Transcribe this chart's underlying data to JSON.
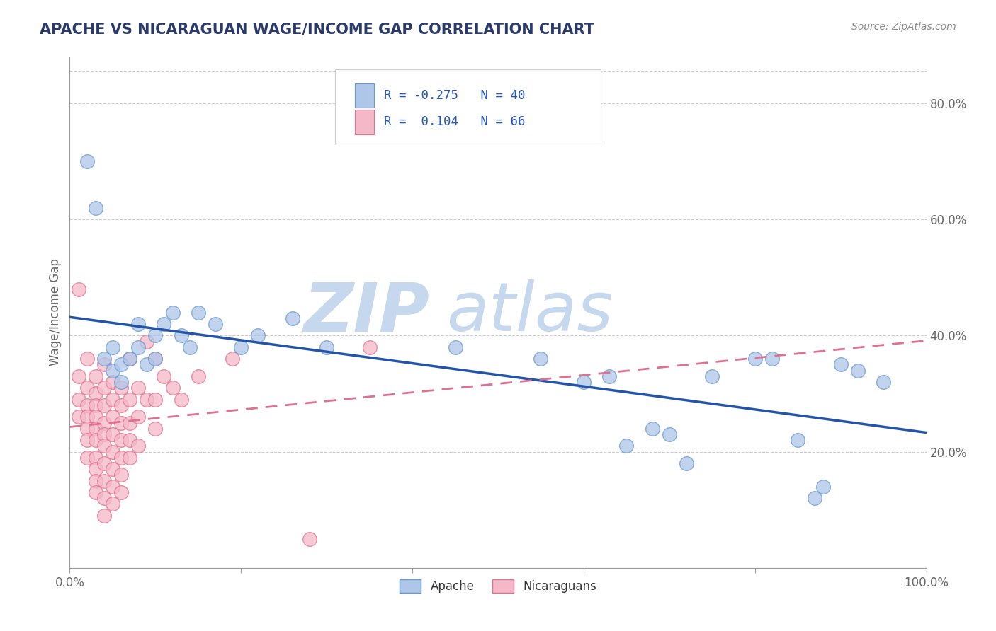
{
  "title": "APACHE VS NICARAGUAN WAGE/INCOME GAP CORRELATION CHART",
  "source": "Source: ZipAtlas.com",
  "ylabel": "Wage/Income Gap",
  "xlim": [
    0.0,
    1.0
  ],
  "ylim": [
    0.0,
    0.88
  ],
  "yticks_right": [
    0.2,
    0.4,
    0.6,
    0.8
  ],
  "ytick_labels_right": [
    "20.0%",
    "40.0%",
    "60.0%",
    "80.0%"
  ],
  "apache_color": "#aec6e8",
  "apache_edge": "#6699cc",
  "nicaraguan_color": "#f4b8c8",
  "nicaraguan_edge": "#e07090",
  "apache_line_color": "#2255aa",
  "nicaraguan_line_color": "#e07090",
  "watermark_zip": "ZIP",
  "watermark_atlas": "atlas",
  "watermark_color": "#c5d8ed",
  "grid_color": "#cccccc",
  "background_color": "#ffffff",
  "title_color": "#2a3a6a",
  "source_color": "#888888",
  "axis_color": "#999999",
  "tick_label_color": "#666666",
  "legend_text_color": "#2255bb",
  "apache_points": [
    [
      0.02,
      0.7
    ],
    [
      0.03,
      0.62
    ],
    [
      0.04,
      0.36
    ],
    [
      0.05,
      0.38
    ],
    [
      0.05,
      0.34
    ],
    [
      0.06,
      0.35
    ],
    [
      0.06,
      0.32
    ],
    [
      0.07,
      0.36
    ],
    [
      0.08,
      0.38
    ],
    [
      0.08,
      0.42
    ],
    [
      0.09,
      0.35
    ],
    [
      0.1,
      0.4
    ],
    [
      0.1,
      0.36
    ],
    [
      0.11,
      0.42
    ],
    [
      0.12,
      0.44
    ],
    [
      0.13,
      0.4
    ],
    [
      0.14,
      0.38
    ],
    [
      0.15,
      0.44
    ],
    [
      0.17,
      0.42
    ],
    [
      0.2,
      0.38
    ],
    [
      0.22,
      0.4
    ],
    [
      0.26,
      0.43
    ],
    [
      0.3,
      0.38
    ],
    [
      0.45,
      0.38
    ],
    [
      0.55,
      0.36
    ],
    [
      0.6,
      0.32
    ],
    [
      0.63,
      0.33
    ],
    [
      0.65,
      0.21
    ],
    [
      0.68,
      0.24
    ],
    [
      0.7,
      0.23
    ],
    [
      0.72,
      0.18
    ],
    [
      0.75,
      0.33
    ],
    [
      0.8,
      0.36
    ],
    [
      0.82,
      0.36
    ],
    [
      0.85,
      0.22
    ],
    [
      0.87,
      0.12
    ],
    [
      0.88,
      0.14
    ],
    [
      0.9,
      0.35
    ],
    [
      0.92,
      0.34
    ],
    [
      0.95,
      0.32
    ]
  ],
  "nicaraguan_points": [
    [
      0.01,
      0.48
    ],
    [
      0.01,
      0.33
    ],
    [
      0.01,
      0.29
    ],
    [
      0.01,
      0.26
    ],
    [
      0.02,
      0.36
    ],
    [
      0.02,
      0.31
    ],
    [
      0.02,
      0.28
    ],
    [
      0.02,
      0.26
    ],
    [
      0.02,
      0.24
    ],
    [
      0.02,
      0.22
    ],
    [
      0.02,
      0.19
    ],
    [
      0.03,
      0.33
    ],
    [
      0.03,
      0.3
    ],
    [
      0.03,
      0.28
    ],
    [
      0.03,
      0.26
    ],
    [
      0.03,
      0.24
    ],
    [
      0.03,
      0.22
    ],
    [
      0.03,
      0.19
    ],
    [
      0.03,
      0.17
    ],
    [
      0.03,
      0.15
    ],
    [
      0.03,
      0.13
    ],
    [
      0.04,
      0.35
    ],
    [
      0.04,
      0.31
    ],
    [
      0.04,
      0.28
    ],
    [
      0.04,
      0.25
    ],
    [
      0.04,
      0.23
    ],
    [
      0.04,
      0.21
    ],
    [
      0.04,
      0.18
    ],
    [
      0.04,
      0.15
    ],
    [
      0.04,
      0.12
    ],
    [
      0.04,
      0.09
    ],
    [
      0.05,
      0.32
    ],
    [
      0.05,
      0.29
    ],
    [
      0.05,
      0.26
    ],
    [
      0.05,
      0.23
    ],
    [
      0.05,
      0.2
    ],
    [
      0.05,
      0.17
    ],
    [
      0.05,
      0.14
    ],
    [
      0.05,
      0.11
    ],
    [
      0.06,
      0.31
    ],
    [
      0.06,
      0.28
    ],
    [
      0.06,
      0.25
    ],
    [
      0.06,
      0.22
    ],
    [
      0.06,
      0.19
    ],
    [
      0.06,
      0.16
    ],
    [
      0.06,
      0.13
    ],
    [
      0.07,
      0.36
    ],
    [
      0.07,
      0.29
    ],
    [
      0.07,
      0.25
    ],
    [
      0.07,
      0.22
    ],
    [
      0.07,
      0.19
    ],
    [
      0.08,
      0.31
    ],
    [
      0.08,
      0.26
    ],
    [
      0.08,
      0.21
    ],
    [
      0.09,
      0.39
    ],
    [
      0.09,
      0.29
    ],
    [
      0.1,
      0.36
    ],
    [
      0.1,
      0.29
    ],
    [
      0.1,
      0.24
    ],
    [
      0.11,
      0.33
    ],
    [
      0.12,
      0.31
    ],
    [
      0.13,
      0.29
    ],
    [
      0.15,
      0.33
    ],
    [
      0.19,
      0.36
    ],
    [
      0.28,
      0.05
    ],
    [
      0.35,
      0.38
    ]
  ]
}
